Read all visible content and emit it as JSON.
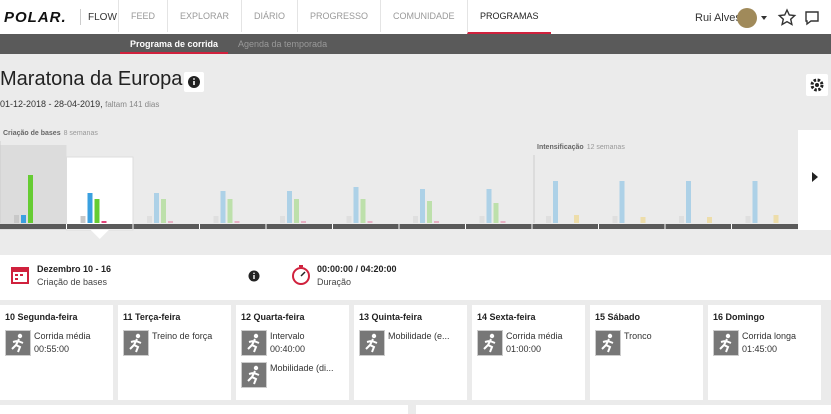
{
  "nav": {
    "logo": "POLAR.",
    "product": "FLOW",
    "items": [
      "FEED",
      "EXPLORAR",
      "DIÁRIO",
      "PROGRESSO",
      "COMUNIDADE",
      "PROGRAMAS"
    ],
    "active": 5,
    "user": "Rui Alves"
  },
  "subnav": {
    "items": [
      "Programa de corrida",
      "Agenda da temporada"
    ],
    "active": 0
  },
  "program": {
    "title": "Maratona da Europa",
    "dates": "01-12-2018 - 28-04-2019,",
    "remaining": "faltam 141 dias"
  },
  "phases": [
    {
      "name": "Criação de bases",
      "weeks": "8 semanas",
      "start_week": 0
    },
    {
      "name": "Intensificação",
      "weeks": "12 semanas",
      "start_week": 8
    }
  ],
  "week_chart": {
    "type": "bar",
    "past_weeks": 2,
    "selected_week": 1,
    "series": [
      {
        "color": "#c8c8c8",
        "values": [
          8,
          7,
          7,
          7,
          7,
          7,
          7,
          7,
          7,
          7,
          7,
          7
        ]
      },
      {
        "color": "#3aa0e0",
        "values": [
          8,
          30,
          30,
          32,
          32,
          36,
          34,
          34,
          42,
          42,
          42,
          42
        ]
      },
      {
        "color": "#66cc33",
        "values": [
          48,
          24,
          24,
          24,
          24,
          24,
          22,
          20,
          0,
          0,
          0,
          0
        ]
      },
      {
        "color": "#e0457a",
        "values": [
          0,
          2,
          2,
          2,
          2,
          2,
          2,
          2,
          0,
          0,
          0,
          0
        ]
      },
      {
        "color": "#f2c230",
        "values": [
          0,
          0,
          0,
          0,
          0,
          0,
          0,
          0,
          8,
          6,
          6,
          8
        ]
      }
    ]
  },
  "week": {
    "title": "Dezembro 10 - 16",
    "phase": "Criação de bases",
    "duration": "00:00:00 / 04:20:00",
    "duration_label": "Duração"
  },
  "days": [
    {
      "label": "10 Segunda-feira",
      "activities": [
        {
          "name": "Corrida média",
          "time": "00:55:00"
        }
      ]
    },
    {
      "label": "11 Terça-feira",
      "activities": [
        {
          "name": "Treino de força"
        }
      ]
    },
    {
      "label": "12 Quarta-feira",
      "activities": [
        {
          "name": "Intervalo",
          "time": "00:40:00"
        },
        {
          "name": "Mobilidade (di..."
        }
      ]
    },
    {
      "label": "13 Quinta-feira",
      "activities": [
        {
          "name": "Mobilidade (e..."
        }
      ]
    },
    {
      "label": "14 Sexta-feira",
      "activities": [
        {
          "name": "Corrida média",
          "time": "01:00:00"
        }
      ]
    },
    {
      "label": "15 Sábado",
      "activities": [
        {
          "name": "Tronco"
        }
      ]
    },
    {
      "label": "16 Domingo",
      "activities": [
        {
          "name": "Corrida longa",
          "time": "01:45:00"
        }
      ]
    }
  ]
}
